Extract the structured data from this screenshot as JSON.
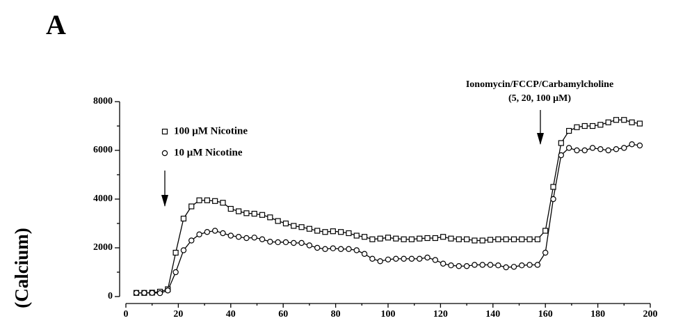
{
  "chart_data": {
    "type": "line",
    "title": "A",
    "ylabel": "(Calcium)",
    "annotations": [
      "Ionomycin/FCCP/Carbamylcholine",
      "(5, 20, 100 μM)"
    ],
    "x": [
      4,
      7,
      10,
      13,
      16,
      19,
      22,
      25,
      28,
      31,
      34,
      37,
      40,
      43,
      46,
      49,
      52,
      55,
      58,
      61,
      64,
      67,
      70,
      73,
      76,
      79,
      82,
      85,
      88,
      91,
      94,
      97,
      100,
      103,
      106,
      109,
      112,
      115,
      118,
      121,
      124,
      127,
      130,
      133,
      136,
      139,
      142,
      145,
      148,
      151,
      154,
      157,
      160,
      163,
      166,
      169,
      172,
      175,
      178,
      181,
      184,
      187,
      190,
      193,
      196
    ],
    "series": [
      {
        "name": "100 μM Nicotine",
        "marker": "square",
        "color": "#000000",
        "values": [
          150,
          150,
          160,
          200,
          300,
          1800,
          3200,
          3700,
          3950,
          3950,
          3920,
          3850,
          3600,
          3500,
          3420,
          3400,
          3350,
          3250,
          3100,
          3000,
          2900,
          2850,
          2780,
          2700,
          2650,
          2680,
          2650,
          2600,
          2500,
          2450,
          2350,
          2380,
          2420,
          2380,
          2350,
          2350,
          2380,
          2400,
          2400,
          2450,
          2380,
          2350,
          2350,
          2300,
          2300,
          2330,
          2350,
          2350,
          2350,
          2350,
          2350,
          2350,
          2700,
          4500,
          6300,
          6800,
          6950,
          7000,
          7000,
          7050,
          7150,
          7250,
          7250,
          7150,
          7100
        ]
      },
      {
        "name": "10 μM Nicotine",
        "marker": "circle",
        "color": "#000000",
        "values": [
          150,
          150,
          150,
          140,
          250,
          1000,
          1900,
          2300,
          2550,
          2650,
          2700,
          2600,
          2500,
          2450,
          2400,
          2420,
          2350,
          2250,
          2230,
          2230,
          2200,
          2200,
          2100,
          2000,
          1950,
          1980,
          1950,
          1950,
          1900,
          1750,
          1550,
          1450,
          1520,
          1550,
          1550,
          1550,
          1550,
          1600,
          1500,
          1350,
          1280,
          1250,
          1250,
          1300,
          1300,
          1300,
          1280,
          1200,
          1220,
          1280,
          1300,
          1300,
          1800,
          4000,
          5800,
          6100,
          6000,
          6000,
          6100,
          6050,
          6000,
          6050,
          6100,
          6250,
          6200
        ]
      }
    ],
    "xlim": [
      0,
      200
    ],
    "xticks": [
      0,
      20,
      40,
      60,
      80,
      100,
      120,
      140,
      160,
      180,
      200
    ],
    "ylim": [
      0,
      8000
    ],
    "yticks": [
      0,
      2000,
      4000,
      6000,
      8000
    ]
  }
}
